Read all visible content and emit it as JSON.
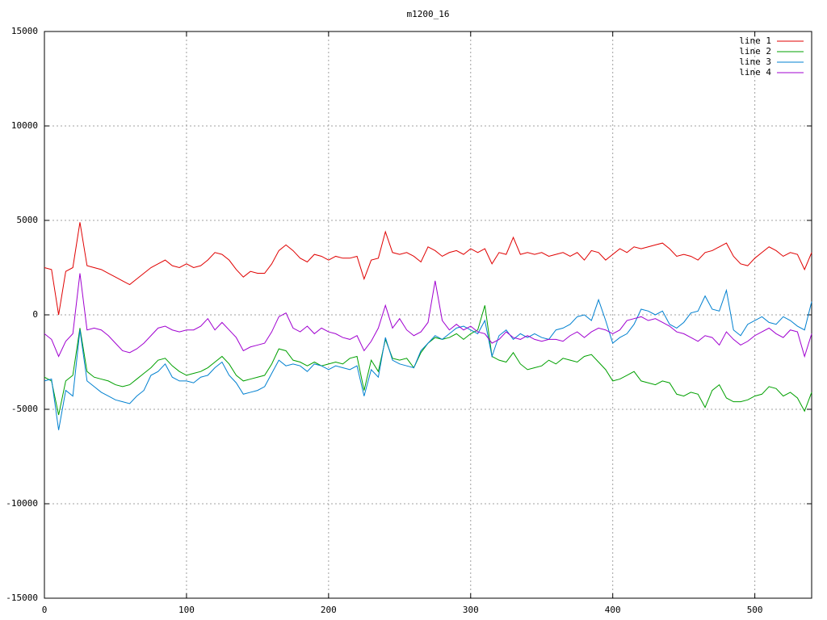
{
  "chart_data": {
    "type": "line",
    "title": "m1200_16",
    "x": [
      0,
      5,
      10,
      15,
      20,
      25,
      30,
      35,
      40,
      45,
      50,
      55,
      60,
      65,
      70,
      75,
      80,
      85,
      90,
      95,
      100,
      105,
      110,
      115,
      120,
      125,
      130,
      135,
      140,
      145,
      150,
      155,
      160,
      165,
      170,
      175,
      180,
      185,
      190,
      195,
      200,
      205,
      210,
      215,
      220,
      225,
      230,
      235,
      240,
      245,
      250,
      255,
      260,
      265,
      270,
      275,
      280,
      285,
      290,
      295,
      300,
      305,
      310,
      315,
      320,
      325,
      330,
      335,
      340,
      345,
      350,
      355,
      360,
      365,
      370,
      375,
      380,
      385,
      390,
      395,
      400,
      405,
      410,
      415,
      420,
      425,
      430,
      435,
      440,
      445,
      450,
      455,
      460,
      465,
      470,
      475,
      480,
      485,
      490,
      495,
      500,
      505,
      510,
      515,
      520,
      525,
      530,
      535,
      540
    ],
    "series": [
      {
        "name": "line 1",
        "color": "#e00000",
        "values": [
          2500,
          2400,
          0,
          2300,
          2500,
          4900,
          2600,
          2500,
          2400,
          2200,
          2000,
          1800,
          1600,
          1900,
          2200,
          2500,
          2700,
          2900,
          2600,
          2500,
          2700,
          2500,
          2600,
          2900,
          3300,
          3200,
          2900,
          2400,
          2000,
          2300,
          2200,
          2200,
          2700,
          3400,
          3700,
          3400,
          3000,
          2800,
          3200,
          3100,
          2900,
          3100,
          3000,
          3000,
          3100,
          1900,
          2900,
          3000,
          4400,
          3300,
          3200,
          3300,
          3100,
          2800,
          3600,
          3400,
          3100,
          3300,
          3400,
          3200,
          3500,
          3300,
          3500,
          2700,
          3300,
          3200,
          4100,
          3200,
          3300,
          3200,
          3300,
          3100,
          3200,
          3300,
          3100,
          3300,
          2900,
          3400,
          3300,
          2900,
          3200,
          3500,
          3300,
          3600,
          3500,
          3600,
          3700,
          3800,
          3500,
          3100,
          3200,
          3100,
          2900,
          3300,
          3400,
          3600,
          3800,
          3100,
          2700,
          2600,
          3000,
          3300,
          3600,
          3400,
          3100,
          3300,
          3200,
          2400,
          3300
        ]
      },
      {
        "name": "line 2",
        "color": "#00a000",
        "values": [
          -3300,
          -3500,
          -5300,
          -3500,
          -3200,
          -700,
          -3000,
          -3300,
          -3400,
          -3500,
          -3700,
          -3800,
          -3700,
          -3400,
          -3100,
          -2800,
          -2400,
          -2300,
          -2700,
          -3000,
          -3200,
          -3100,
          -3000,
          -2800,
          -2500,
          -2200,
          -2600,
          -3200,
          -3500,
          -3400,
          -3300,
          -3200,
          -2600,
          -1800,
          -1900,
          -2400,
          -2500,
          -2700,
          -2500,
          -2700,
          -2600,
          -2500,
          -2600,
          -2300,
          -2200,
          -4000,
          -2400,
          -3000,
          -1300,
          -2300,
          -2400,
          -2300,
          -2800,
          -2000,
          -1500,
          -1200,
          -1300,
          -1200,
          -1000,
          -1300,
          -1000,
          -800,
          500,
          -2200,
          -2400,
          -2500,
          -2000,
          -2600,
          -2900,
          -2800,
          -2700,
          -2400,
          -2600,
          -2300,
          -2400,
          -2500,
          -2200,
          -2100,
          -2500,
          -2900,
          -3500,
          -3400,
          -3200,
          -3000,
          -3500,
          -3600,
          -3700,
          -3500,
          -3600,
          -4200,
          -4300,
          -4100,
          -4200,
          -4900,
          -4000,
          -3700,
          -4400,
          -4600,
          -4600,
          -4500,
          -4300,
          -4200,
          -3800,
          -3900,
          -4300,
          -4100,
          -4400,
          -5100,
          -4100
        ]
      },
      {
        "name": "line 3",
        "color": "#0080d0",
        "values": [
          -3500,
          -3400,
          -6100,
          -4000,
          -4300,
          -800,
          -3500,
          -3800,
          -4100,
          -4300,
          -4500,
          -4600,
          -4700,
          -4300,
          -4000,
          -3200,
          -3000,
          -2600,
          -3300,
          -3500,
          -3500,
          -3600,
          -3300,
          -3200,
          -2800,
          -2500,
          -3200,
          -3600,
          -4200,
          -4100,
          -4000,
          -3800,
          -3100,
          -2400,
          -2700,
          -2600,
          -2700,
          -3000,
          -2600,
          -2700,
          -2900,
          -2700,
          -2800,
          -2900,
          -2700,
          -4300,
          -2900,
          -3300,
          -1200,
          -2400,
          -2600,
          -2700,
          -2800,
          -1900,
          -1500,
          -1100,
          -1300,
          -1000,
          -700,
          -600,
          -800,
          -1000,
          -300,
          -2200,
          -1100,
          -800,
          -1300,
          -1000,
          -1200,
          -1000,
          -1200,
          -1300,
          -800,
          -700,
          -500,
          -100,
          0,
          -300,
          800,
          -300,
          -1500,
          -1200,
          -1000,
          -500,
          300,
          200,
          0,
          200,
          -500,
          -700,
          -400,
          100,
          200,
          1000,
          300,
          200,
          1300,
          -800,
          -1100,
          -500,
          -300,
          -100,
          -400,
          -500,
          -100,
          -300,
          -600,
          -800,
          700
        ]
      },
      {
        "name": "line 4",
        "color": "#a000d0",
        "values": [
          -1000,
          -1300,
          -2200,
          -1400,
          -1000,
          2200,
          -800,
          -700,
          -800,
          -1100,
          -1500,
          -1900,
          -2000,
          -1800,
          -1500,
          -1100,
          -700,
          -600,
          -800,
          -900,
          -800,
          -800,
          -600,
          -200,
          -800,
          -400,
          -800,
          -1200,
          -1900,
          -1700,
          -1600,
          -1500,
          -900,
          -100,
          100,
          -700,
          -900,
          -600,
          -1000,
          -700,
          -900,
          -1000,
          -1200,
          -1300,
          -1100,
          -1900,
          -1400,
          -700,
          500,
          -700,
          -200,
          -800,
          -1100,
          -900,
          -400,
          1800,
          -300,
          -800,
          -500,
          -800,
          -600,
          -900,
          -1000,
          -1500,
          -1300,
          -900,
          -1200,
          -1300,
          -1100,
          -1300,
          -1400,
          -1300,
          -1300,
          -1400,
          -1100,
          -900,
          -1200,
          -900,
          -700,
          -800,
          -1000,
          -800,
          -300,
          -200,
          -100,
          -300,
          -200,
          -400,
          -600,
          -900,
          -1000,
          -1200,
          -1400,
          -1100,
          -1200,
          -1600,
          -900,
          -1300,
          -1600,
          -1400,
          -1100,
          -900,
          -700,
          -1000,
          -1200,
          -800,
          -900,
          -2200,
          -1000
        ]
      }
    ],
    "xlim": [
      0,
      540
    ],
    "xticks": [
      0,
      100,
      200,
      300,
      400,
      500
    ],
    "ylim": [
      -15000,
      15000
    ],
    "yticks": [
      -15000,
      -10000,
      -5000,
      0,
      5000,
      10000,
      15000
    ],
    "grid": true,
    "legend": "top-right"
  }
}
